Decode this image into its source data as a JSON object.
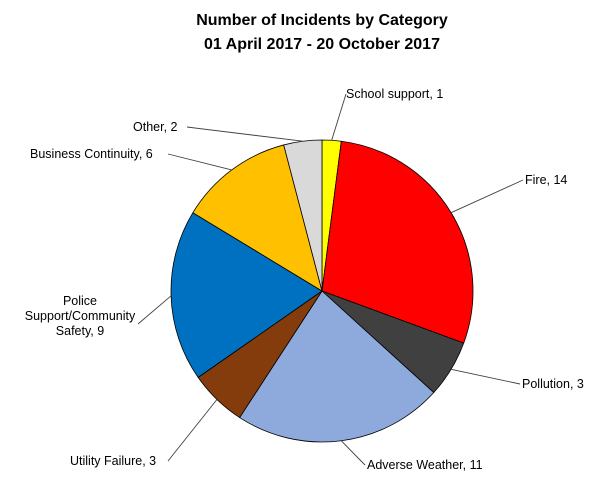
{
  "chart_data": {
    "type": "pie",
    "title": "Number of Incidents by Category",
    "subtitle": "01 April 2017 - 20 October 2017",
    "legend": "none",
    "start_angle_deg": 0,
    "direction": "clockwise",
    "slices": [
      {
        "label": "School support",
        "value": 1,
        "color": "#FFFF00",
        "data_label": "School support, 1"
      },
      {
        "label": "Fire",
        "value": 14,
        "color": "#FF0000",
        "data_label": "Fire, 14"
      },
      {
        "label": "Pollution",
        "value": 3,
        "color": "#404040",
        "data_label": "Pollution, 3"
      },
      {
        "label": "Adverse Weather",
        "value": 11,
        "color": "#8EA9DB",
        "data_label": "Adverse Weather, 11"
      },
      {
        "label": "Utility Failure",
        "value": 3,
        "color": "#843C0C",
        "data_label": "Utility Failure, 3"
      },
      {
        "label": "Police Support/Community Safety",
        "value": 9,
        "color": "#0070C0",
        "data_label_lines": [
          "Police",
          "Support/Community",
          "Safety, 9"
        ]
      },
      {
        "label": "Business Continuity",
        "value": 6,
        "color": "#FFC000",
        "data_label": "Business Continuity, 6"
      },
      {
        "label": "Other",
        "value": 2,
        "color": "#D9D9D9",
        "data_label": "Other, 2"
      }
    ]
  }
}
